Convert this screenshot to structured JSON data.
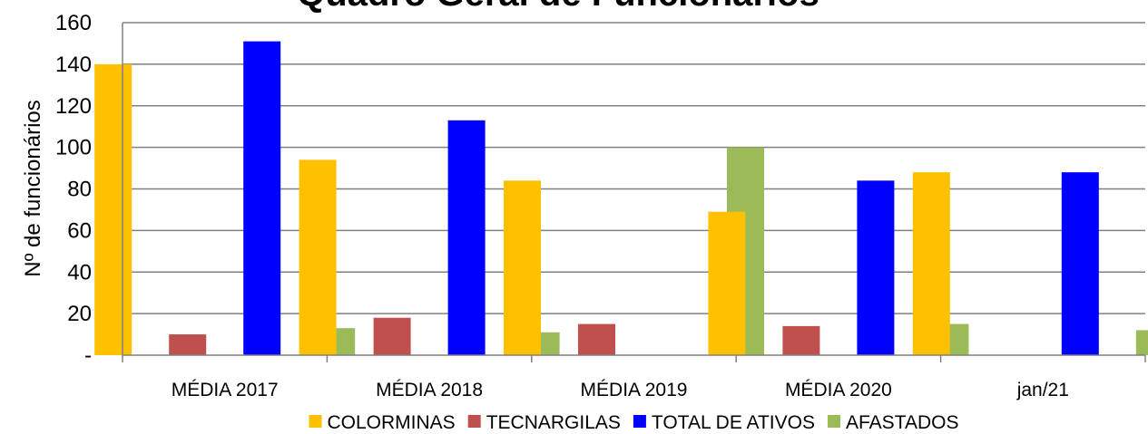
{
  "chart_data": {
    "type": "bar",
    "title": "Quadro Geral de Funcionários",
    "xlabel": "",
    "ylabel": "Nº de funcionários",
    "categories": [
      "MÉDIA 2017",
      "MÉDIA 2018",
      "MÉDIA 2019",
      "MÉDIA 2020",
      "jan/21"
    ],
    "ylim": [
      0,
      160
    ],
    "yticks": [
      0,
      20,
      40,
      60,
      80,
      100,
      120,
      140,
      160
    ],
    "ytick_labels": [
      "-",
      "20",
      "40",
      "60",
      "80",
      "100",
      "120",
      "140",
      "160"
    ],
    "grid": true,
    "legend_position": "bottom",
    "series": [
      {
        "name": "COLORMINAS",
        "color": "#FFC000",
        "values": [
          140,
          94,
          84,
          69,
          88
        ]
      },
      {
        "name": "TECNARGILAS",
        "color": "#C0504D",
        "values": [
          10,
          18,
          15,
          14,
          null
        ]
      },
      {
        "name": "TOTAL DE ATIVOS",
        "color": "#0000FF",
        "values": [
          151,
          113,
          null,
          84,
          88
        ]
      },
      {
        "name": "AFASTADOS",
        "color": "#9BBB59",
        "values": [
          13,
          11,
          100,
          15,
          12
        ]
      }
    ]
  }
}
